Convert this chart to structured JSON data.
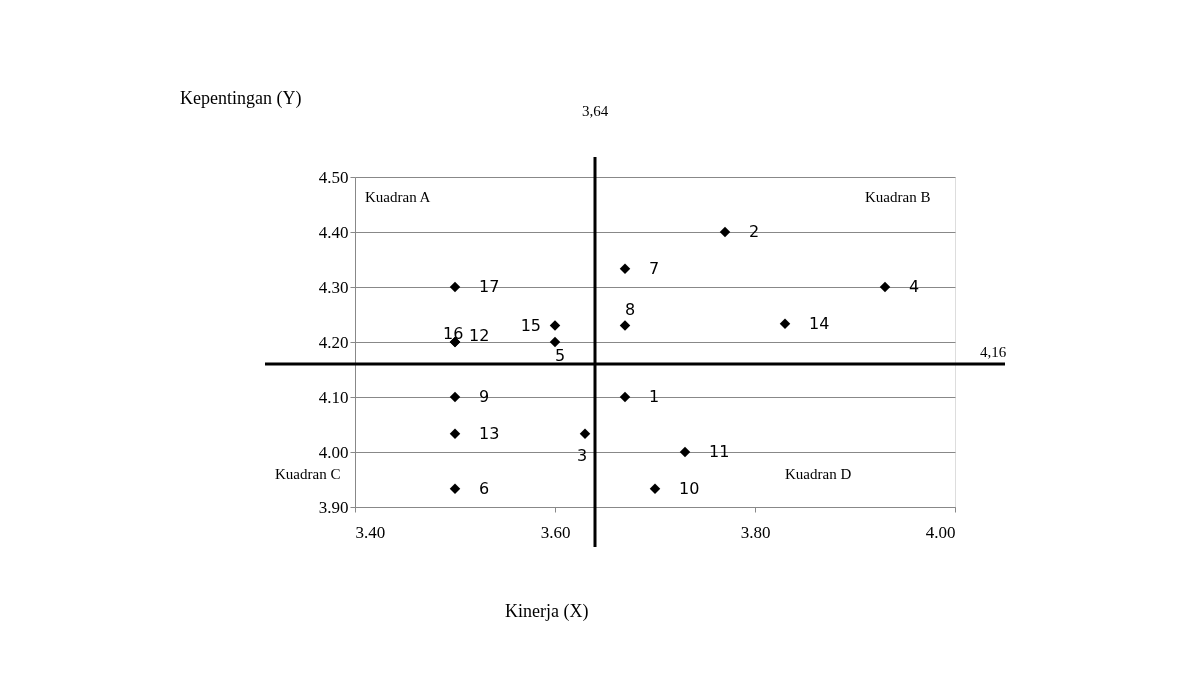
{
  "chart_data": {
    "type": "scatter",
    "xlabel": "Kinerja (X)",
    "ylabel": "Kepentingan (Y)",
    "x": [
      3.67,
      3.77,
      3.63,
      3.93,
      3.6,
      3.5,
      3.67,
      3.67,
      3.5,
      3.7,
      3.73,
      3.5,
      3.5,
      3.83,
      3.6,
      3.5,
      3.5
    ],
    "series": [
      {
        "color": "#000000",
        "values": [
          4.1,
          4.4,
          4.033,
          4.3,
          4.2,
          3.933,
          4.333,
          4.23,
          4.1,
          3.933,
          4.0,
          4.2,
          4.033,
          4.233,
          4.23,
          4.2,
          4.3
        ]
      }
    ],
    "marker": "diamond",
    "xlim": [
      3.4,
      4.0
    ],
    "xticks": [
      {
        "value": 3.4,
        "label": "3.40"
      },
      {
        "value": 3.6,
        "label": "3.60"
      },
      {
        "value": 3.8,
        "label": "3.80"
      },
      {
        "value": 4.0,
        "label": "4.00"
      }
    ],
    "ylim": [
      3.9,
      4.5
    ],
    "yticks": [
      {
        "value": 3.9,
        "label": "3.90"
      },
      {
        "value": 4.0,
        "label": "4.00"
      },
      {
        "value": 4.1,
        "label": "4.10"
      },
      {
        "value": 4.2,
        "label": "4.20"
      },
      {
        "value": 4.3,
        "label": "4.30"
      },
      {
        "value": 4.4,
        "label": "4.40"
      },
      {
        "value": 4.5,
        "label": "4.50"
      }
    ],
    "grid": "y",
    "ref_lines": [
      {
        "axis": "x",
        "value": 3.64,
        "label": "3,64"
      },
      {
        "axis": "y",
        "value": 4.16,
        "label": "4,16"
      }
    ],
    "annotations": [
      {
        "text": "1",
        "x": 3.67,
        "y": 4.1
      },
      {
        "text": "2",
        "x": 3.77,
        "y": 4.4
      },
      {
        "text": "3",
        "x": 3.63,
        "y": 4.033
      },
      {
        "text": "4",
        "x": 3.93,
        "y": 4.3
      },
      {
        "text": "5",
        "x": 3.6,
        "y": 4.2
      },
      {
        "text": "6",
        "x": 3.5,
        "y": 3.933
      },
      {
        "text": "7",
        "x": 3.67,
        "y": 4.333
      },
      {
        "text": "8",
        "x": 3.67,
        "y": 4.23
      },
      {
        "text": "9",
        "x": 3.5,
        "y": 4.1
      },
      {
        "text": "10",
        "x": 3.7,
        "y": 3.933
      },
      {
        "text": "11",
        "x": 3.73,
        "y": 4.0
      },
      {
        "text": "12",
        "x": 3.5,
        "y": 4.2
      },
      {
        "text": "13",
        "x": 3.5,
        "y": 4.033
      },
      {
        "text": "14",
        "x": 3.83,
        "y": 4.233
      },
      {
        "text": "15",
        "x": 3.6,
        "y": 4.23
      },
      {
        "text": "16",
        "x": 3.5,
        "y": 4.2
      },
      {
        "text": "17",
        "x": 3.5,
        "y": 4.3
      },
      "Kuadran A",
      "Kuadran B",
      "Kuadran C",
      "Kuadran D"
    ]
  }
}
